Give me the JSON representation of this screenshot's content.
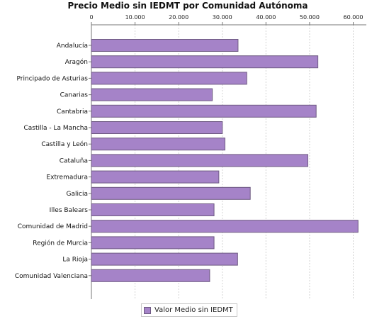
{
  "chart_data": {
    "type": "bar",
    "orientation": "horizontal",
    "title": "Precio Medio sin IEDMT por Comunidad Autónoma",
    "xlabel": "",
    "ylabel": "",
    "xlim": [
      0,
      63000
    ],
    "ticks": [
      0,
      10000,
      20000,
      30000,
      40000,
      50000,
      60000
    ],
    "tick_labels": [
      "0",
      "10.000",
      "20.000",
      "30.000",
      "40.000",
      "50.000",
      "60.000"
    ],
    "axis_position": "top",
    "grid": "vertical-dashed",
    "legend_position": "bottom-center",
    "bar_color": "#a583c8",
    "bar_border_color": "#6e5a82",
    "categories": [
      "Andalucía",
      "Aragón",
      "Principado de Asturias",
      "Canarias",
      "Cantabria",
      "Castilla - La Mancha",
      "Castilla y León",
      "Cataluña",
      "Extremadura",
      "Galicia",
      "Illes Balears",
      "Comunidad de Madrid",
      "Región de Murcia",
      "La Rioja",
      "Comunidad Valenciana"
    ],
    "series": [
      {
        "name": "Valor Medio sin IEDMT",
        "values": [
          33600,
          51900,
          35600,
          27700,
          51500,
          30000,
          30600,
          49600,
          29200,
          36400,
          28100,
          61100,
          28100,
          33500,
          27100
        ]
      }
    ]
  }
}
